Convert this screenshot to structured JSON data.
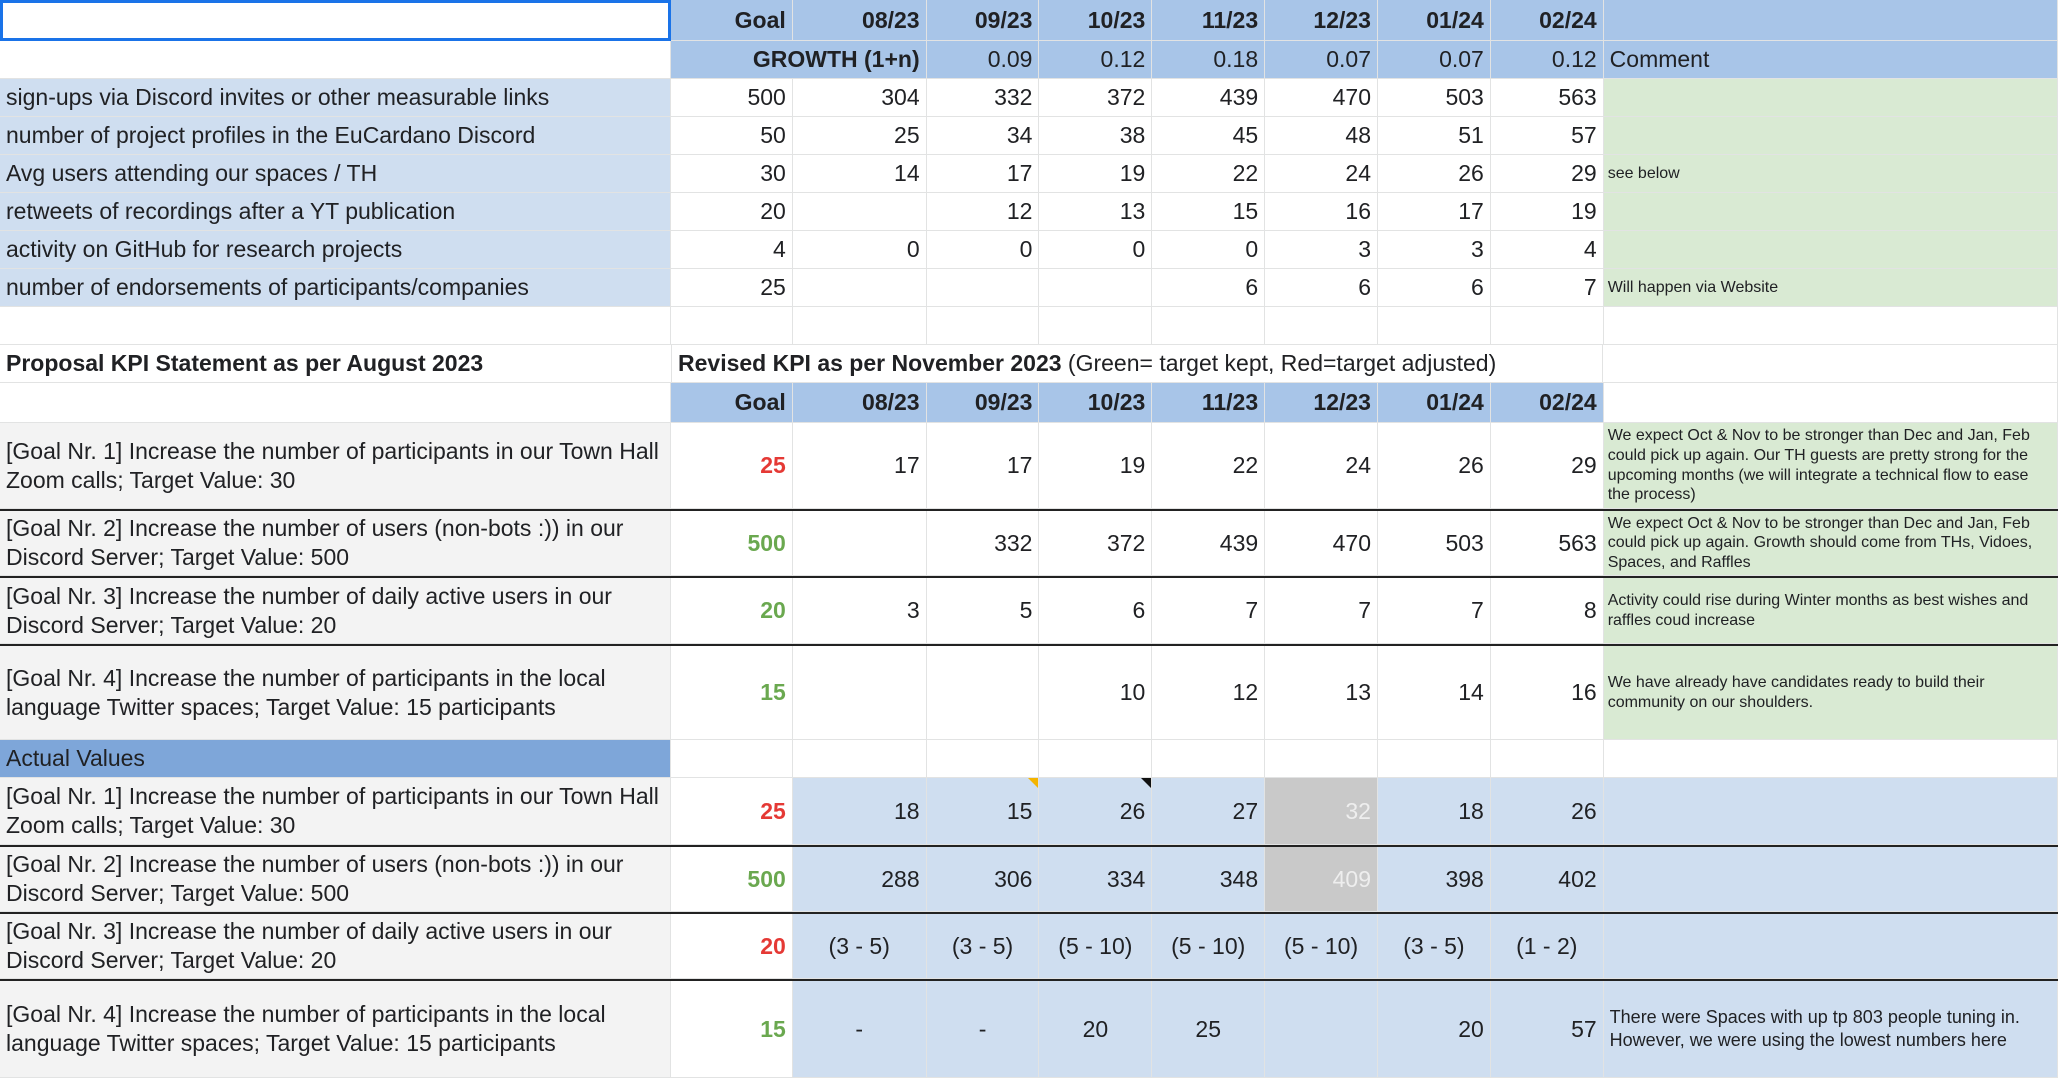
{
  "months": [
    "08/23",
    "09/23",
    "10/23",
    "11/23",
    "12/23",
    "01/24",
    "02/24"
  ],
  "top": {
    "goal_header": "Goal",
    "growth_label": "GROWTH (1+n)",
    "growth": [
      "0.09",
      "0.12",
      "0.18",
      "0.07",
      "0.07",
      "0.12"
    ],
    "comment_header": "Comment",
    "rows": [
      {
        "label": "sign-ups via Discord invites or other measurable links",
        "goal": "500",
        "values": [
          "304",
          "332",
          "372",
          "439",
          "470",
          "503",
          "563"
        ],
        "comment": ""
      },
      {
        "label": "number of project profiles in the EuCardano Discord",
        "goal": "50",
        "values": [
          "25",
          "34",
          "38",
          "45",
          "48",
          "51",
          "57"
        ],
        "comment": ""
      },
      {
        "label": "Avg users attending our spaces / TH",
        "goal": "30",
        "values": [
          "14",
          "17",
          "19",
          "22",
          "24",
          "26",
          "29"
        ],
        "comment": "see below"
      },
      {
        "label": "retweets of recordings after a YT publication",
        "goal": "20",
        "values": [
          "",
          "12",
          "13",
          "15",
          "16",
          "17",
          "19"
        ],
        "comment": ""
      },
      {
        "label": "activity on GitHub for research projects",
        "goal": "4",
        "values": [
          "0",
          "0",
          "0",
          "0",
          "3",
          "3",
          "4"
        ],
        "comment": ""
      },
      {
        "label": "number of endorsements of participants/companies",
        "goal": "25",
        "values": [
          "",
          "",
          "",
          "6",
          "6",
          "6",
          "7"
        ],
        "comment": "Will happen via Website"
      }
    ]
  },
  "proposal_title": "Proposal KPI Statement as per August 2023",
  "revised": {
    "title_bold": "Revised KPI as per November 2023",
    "title_rest": " (Green= target kept, Red=target adjusted)",
    "goal_header": "Goal",
    "rows": [
      {
        "label": "[Goal Nr. 1] Increase the number of participants in our Town Hall Zoom calls; Target Value: 30",
        "goal": "25",
        "goal_color": "red",
        "values": [
          "17",
          "17",
          "19",
          "22",
          "24",
          "26",
          "29"
        ],
        "comment": "We expect Oct & Nov to be stronger than Dec and Jan, Feb could pick up again. Our TH guests are pretty strong for the upcoming months (we will integrate a technical flow to ease the process)"
      },
      {
        "label": "[Goal Nr. 2] Increase the number of users (non-bots :)) in our Discord Server; Target Value: 500",
        "goal": "500",
        "goal_color": "green",
        "values": [
          "",
          "332",
          "372",
          "439",
          "470",
          "503",
          "563"
        ],
        "comment": "We expect Oct & Nov to be stronger than Dec and Jan, Feb could pick up again. Growth should come from THs, Vidoes, Spaces, and Raffles"
      },
      {
        "label": "[Goal Nr. 3] Increase the number of daily active users in our Discord Server; Target Value: 20",
        "goal": "20",
        "goal_color": "green",
        "values": [
          "3",
          "5",
          "6",
          "7",
          "7",
          "7",
          "8"
        ],
        "comment": "Activity could rise during Winter months as best wishes and raffles coud increase"
      },
      {
        "label": "[Goal Nr. 4] Increase the number of participants in the local language Twitter spaces; Target Value: 15 participants",
        "goal": "15",
        "goal_color": "green",
        "values": [
          "",
          "",
          "10",
          "12",
          "13",
          "14",
          "16"
        ],
        "comment": "We have already have candidates ready to build their community on our shoulders."
      }
    ]
  },
  "actual": {
    "header": "Actual Values",
    "rows": [
      {
        "label": "[Goal Nr. 1] Increase the number of participants in our Town Hall Zoom calls; Target Value: 30",
        "goal": "25",
        "goal_color": "red",
        "values": [
          "18",
          "15",
          "26",
          "27",
          "32",
          "18",
          "26"
        ],
        "comment": ""
      },
      {
        "label": "[Goal Nr. 2] Increase the number of users (non-bots :)) in our Discord Server; Target Value: 500",
        "goal": "500",
        "goal_color": "green",
        "values": [
          "288",
          "306",
          "334",
          "348",
          "409",
          "398",
          "402"
        ],
        "comment": ""
      },
      {
        "label": "[Goal Nr. 3] Increase the number of daily active users in our Discord Server; Target Value: 20",
        "goal": "20",
        "goal_color": "red",
        "values": [
          "(3 - 5)",
          "(3 - 5)",
          "(5 - 10)",
          "(5 - 10)",
          "(5 - 10)",
          "(3 - 5)",
          "(1 - 2)"
        ],
        "comment": ""
      },
      {
        "label": "[Goal Nr. 4] Increase the number of participants in the local language Twitter spaces; Target Value: 15 participants",
        "goal": "15",
        "goal_color": "green",
        "values": [
          "-",
          "-",
          "20",
          "25",
          "",
          "20",
          "57"
        ],
        "comment": "There were Spaces with up tp 803 people tuning in. However, we were using the lowest numbers here"
      }
    ]
  },
  "colors": {
    "header_blue": "#a8c5e8",
    "light_blue": "#cfdef0",
    "green_fill": "#d9ead3",
    "red_text": "#e53935",
    "green_text": "#6aa84f"
  }
}
